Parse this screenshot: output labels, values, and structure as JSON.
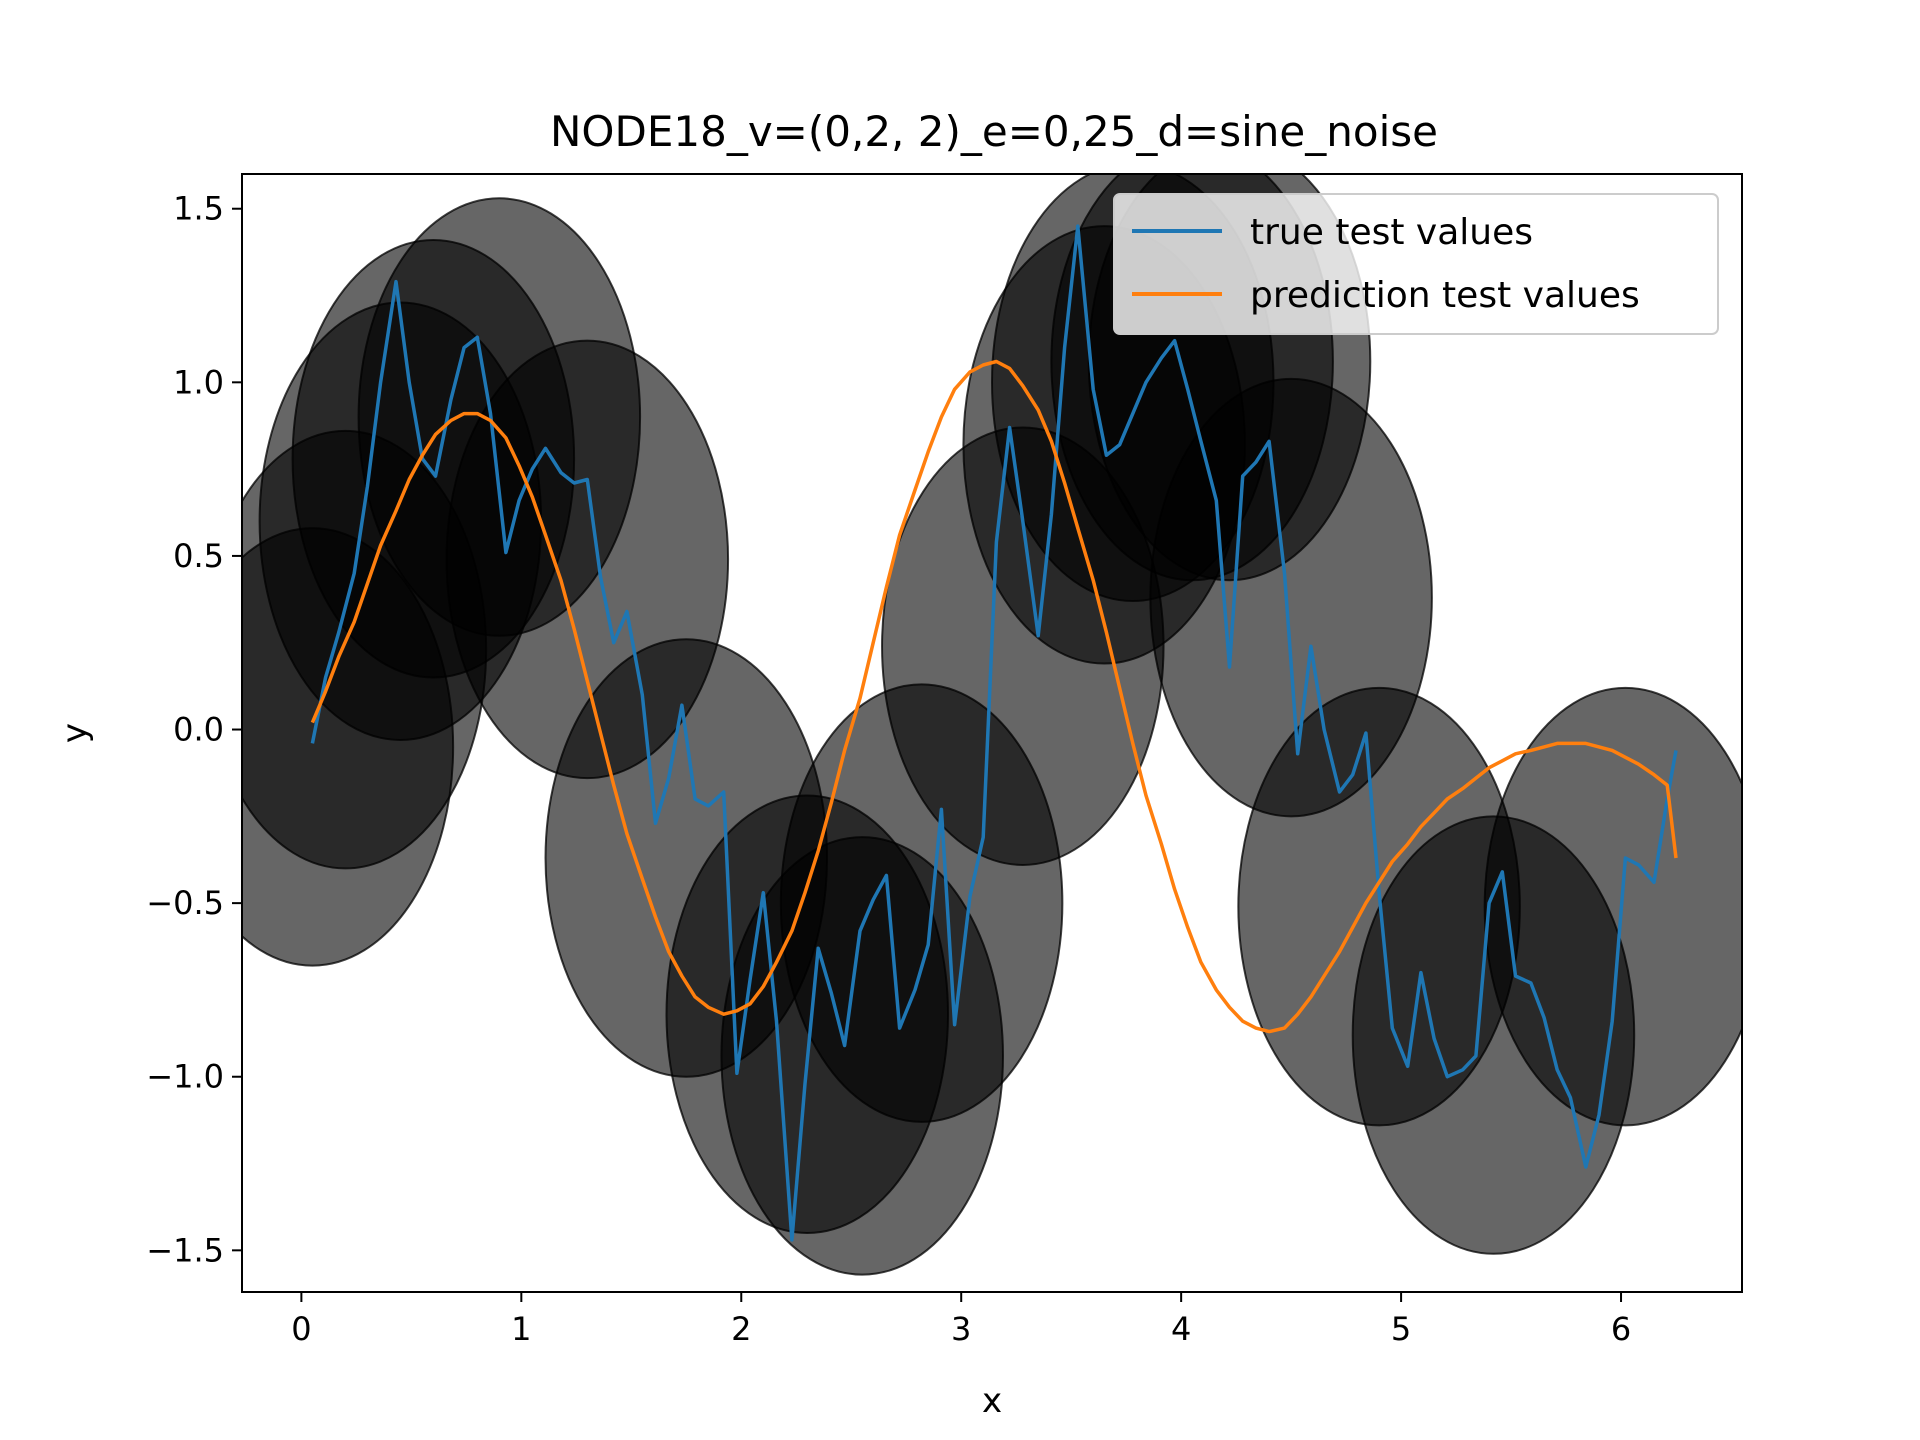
{
  "chart_data": {
    "type": "line",
    "title": "NODE18_v=(0,2, 2)_e=0,25_d=sine_noise",
    "xlabel": "x",
    "ylabel": "y",
    "xlim": [
      -0.27,
      6.55
    ],
    "ylim": [
      -1.62,
      1.6
    ],
    "xticks": [
      0,
      1,
      2,
      3,
      4,
      5,
      6
    ],
    "xtick_labels": [
      "0",
      "1",
      "2",
      "3",
      "4",
      "5",
      "6"
    ],
    "yticks": [
      -1.5,
      -1.0,
      -0.5,
      0.0,
      0.5,
      1.0,
      1.5
    ],
    "ytick_labels": [
      "−1.5",
      "−1.0",
      "−0.5",
      "0.0",
      "0.5",
      "1.0",
      "1.5"
    ],
    "grid": false,
    "legend_position": "top-right",
    "ellipse_style": {
      "fill": "#000000",
      "fill_opacity": 0.6,
      "stroke": "#000000",
      "stroke_opacity": 0.75
    },
    "uncertainty_ellipses": [
      {
        "cx": 0.05,
        "cy": -0.05,
        "rx": 0.64,
        "ry": 0.63
      },
      {
        "cx": 0.2,
        "cy": 0.23,
        "rx": 0.64,
        "ry": 0.63
      },
      {
        "cx": 0.45,
        "cy": 0.6,
        "rx": 0.64,
        "ry": 0.63
      },
      {
        "cx": 0.6,
        "cy": 0.78,
        "rx": 0.64,
        "ry": 0.63
      },
      {
        "cx": 0.9,
        "cy": 0.9,
        "rx": 0.64,
        "ry": 0.63
      },
      {
        "cx": 1.3,
        "cy": 0.49,
        "rx": 0.64,
        "ry": 0.63
      },
      {
        "cx": 1.75,
        "cy": -0.37,
        "rx": 0.64,
        "ry": 0.63
      },
      {
        "cx": 2.3,
        "cy": -0.82,
        "rx": 0.64,
        "ry": 0.63
      },
      {
        "cx": 2.55,
        "cy": -0.94,
        "rx": 0.64,
        "ry": 0.63
      },
      {
        "cx": 2.82,
        "cy": -0.5,
        "rx": 0.64,
        "ry": 0.63
      },
      {
        "cx": 3.28,
        "cy": 0.24,
        "rx": 0.64,
        "ry": 0.63
      },
      {
        "cx": 3.65,
        "cy": 0.82,
        "rx": 0.64,
        "ry": 0.63
      },
      {
        "cx": 3.78,
        "cy": 1.0,
        "rx": 0.64,
        "ry": 0.63
      },
      {
        "cx": 4.05,
        "cy": 1.06,
        "rx": 0.64,
        "ry": 0.63
      },
      {
        "cx": 4.22,
        "cy": 1.06,
        "rx": 0.64,
        "ry": 0.63
      },
      {
        "cx": 4.5,
        "cy": 0.38,
        "rx": 0.64,
        "ry": 0.63
      },
      {
        "cx": 4.9,
        "cy": -0.51,
        "rx": 0.64,
        "ry": 0.63
      },
      {
        "cx": 5.42,
        "cy": -0.88,
        "rx": 0.64,
        "ry": 0.63
      },
      {
        "cx": 6.02,
        "cy": -0.51,
        "rx": 0.64,
        "ry": 0.63
      }
    ],
    "series": [
      {
        "name": "true test values",
        "color": "#1f77b4",
        "x": [
          0.05,
          0.11,
          0.17,
          0.24,
          0.3,
          0.36,
          0.43,
          0.49,
          0.55,
          0.61,
          0.68,
          0.74,
          0.8,
          0.86,
          0.93,
          0.99,
          1.05,
          1.11,
          1.18,
          1.24,
          1.3,
          1.36,
          1.42,
          1.48,
          1.55,
          1.61,
          1.67,
          1.73,
          1.79,
          1.85,
          1.92,
          1.98,
          2.04,
          2.1,
          2.16,
          2.23,
          2.29,
          2.35,
          2.41,
          2.47,
          2.54,
          2.6,
          2.66,
          2.72,
          2.79,
          2.85,
          2.91,
          2.97,
          3.04,
          3.1,
          3.16,
          3.22,
          3.28,
          3.35,
          3.41,
          3.47,
          3.53,
          3.6,
          3.66,
          3.72,
          3.78,
          3.84,
          3.91,
          3.97,
          4.03,
          4.09,
          4.16,
          4.22,
          4.28,
          4.34,
          4.4,
          4.47,
          4.53,
          4.59,
          4.65,
          4.72,
          4.78,
          4.84,
          4.9,
          4.96,
          5.03,
          5.09,
          5.15,
          5.21,
          5.28,
          5.34,
          5.4,
          5.46,
          5.52,
          5.59,
          5.65,
          5.71,
          5.77,
          5.84,
          5.9,
          5.96,
          6.02,
          6.08,
          6.15,
          6.21,
          6.25
        ],
        "y": [
          -0.04,
          0.15,
          0.28,
          0.45,
          0.7,
          1.0,
          1.29,
          1.0,
          0.78,
          0.73,
          0.95,
          1.1,
          1.13,
          0.91,
          0.51,
          0.66,
          0.75,
          0.81,
          0.74,
          0.71,
          0.72,
          0.44,
          0.25,
          0.34,
          0.1,
          -0.27,
          -0.14,
          0.07,
          -0.2,
          -0.22,
          -0.18,
          -0.99,
          -0.72,
          -0.47,
          -0.84,
          -1.47,
          -1.02,
          -0.63,
          -0.76,
          -0.91,
          -0.58,
          -0.49,
          -0.42,
          -0.86,
          -0.75,
          -0.62,
          -0.23,
          -0.85,
          -0.48,
          -0.31,
          0.54,
          0.87,
          0.6,
          0.27,
          0.62,
          1.1,
          1.45,
          0.98,
          0.79,
          0.82,
          0.91,
          1.0,
          1.07,
          1.12,
          0.98,
          0.83,
          0.66,
          0.18,
          0.73,
          0.77,
          0.83,
          0.45,
          -0.07,
          0.24,
          0.0,
          -0.18,
          -0.13,
          -0.01,
          -0.47,
          -0.86,
          -0.97,
          -0.7,
          -0.89,
          -1.0,
          -0.98,
          -0.94,
          -0.5,
          -0.41,
          -0.71,
          -0.73,
          -0.83,
          -0.98,
          -1.06,
          -1.26,
          -1.11,
          -0.84,
          -0.37,
          -0.39,
          -0.44,
          -0.2,
          -0.06
        ]
      },
      {
        "name": "prediction test values",
        "color": "#ff7f0e",
        "x": [
          0.05,
          0.11,
          0.17,
          0.24,
          0.3,
          0.36,
          0.43,
          0.49,
          0.55,
          0.61,
          0.68,
          0.74,
          0.8,
          0.86,
          0.93,
          0.99,
          1.05,
          1.11,
          1.18,
          1.24,
          1.3,
          1.36,
          1.42,
          1.48,
          1.55,
          1.61,
          1.67,
          1.73,
          1.79,
          1.85,
          1.92,
          1.98,
          2.04,
          2.1,
          2.16,
          2.23,
          2.29,
          2.35,
          2.41,
          2.47,
          2.54,
          2.6,
          2.66,
          2.72,
          2.79,
          2.85,
          2.91,
          2.97,
          3.04,
          3.1,
          3.16,
          3.22,
          3.28,
          3.35,
          3.41,
          3.47,
          3.53,
          3.6,
          3.66,
          3.72,
          3.78,
          3.84,
          3.91,
          3.97,
          4.03,
          4.09,
          4.16,
          4.22,
          4.28,
          4.34,
          4.4,
          4.47,
          4.53,
          4.59,
          4.65,
          4.72,
          4.78,
          4.84,
          4.9,
          4.96,
          5.03,
          5.09,
          5.15,
          5.21,
          5.28,
          5.34,
          5.4,
          5.46,
          5.52,
          5.59,
          5.65,
          5.71,
          5.77,
          5.84,
          5.9,
          5.96,
          6.02,
          6.08,
          6.15,
          6.21,
          6.25
        ],
        "y": [
          0.02,
          0.11,
          0.21,
          0.31,
          0.42,
          0.53,
          0.63,
          0.72,
          0.79,
          0.85,
          0.89,
          0.91,
          0.91,
          0.89,
          0.84,
          0.76,
          0.67,
          0.56,
          0.43,
          0.29,
          0.14,
          -0.01,
          -0.16,
          -0.3,
          -0.43,
          -0.54,
          -0.64,
          -0.71,
          -0.77,
          -0.8,
          -0.82,
          -0.81,
          -0.79,
          -0.74,
          -0.67,
          -0.58,
          -0.47,
          -0.35,
          -0.21,
          -0.06,
          0.09,
          0.25,
          0.41,
          0.56,
          0.69,
          0.8,
          0.9,
          0.98,
          1.03,
          1.05,
          1.06,
          1.04,
          0.99,
          0.92,
          0.83,
          0.71,
          0.58,
          0.43,
          0.28,
          0.12,
          -0.04,
          -0.19,
          -0.33,
          -0.46,
          -0.57,
          -0.67,
          -0.75,
          -0.8,
          -0.84,
          -0.86,
          -0.87,
          -0.86,
          -0.82,
          -0.77,
          -0.71,
          -0.64,
          -0.57,
          -0.5,
          -0.44,
          -0.38,
          -0.33,
          -0.28,
          -0.24,
          -0.2,
          -0.17,
          -0.14,
          -0.11,
          -0.09,
          -0.07,
          -0.06,
          -0.05,
          -0.04,
          -0.04,
          -0.04,
          -0.05,
          -0.06,
          -0.08,
          -0.1,
          -0.13,
          -0.16,
          -0.37
        ]
      }
    ]
  }
}
